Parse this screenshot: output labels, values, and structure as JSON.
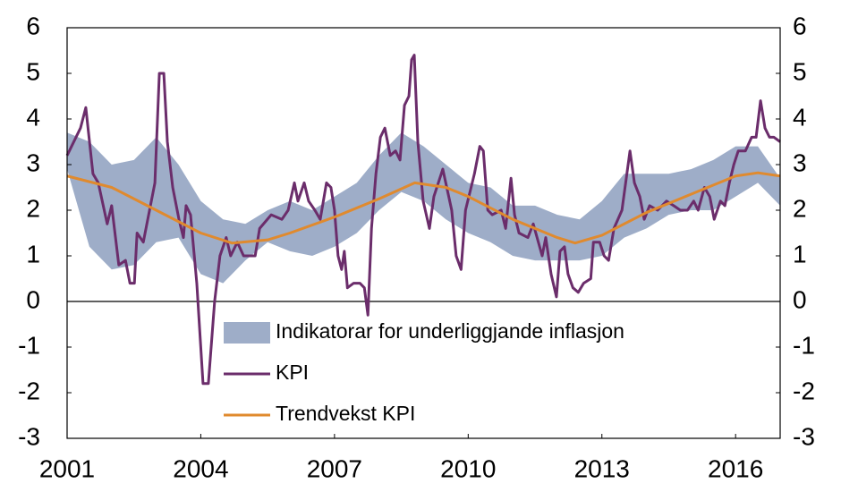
{
  "chart_data": {
    "type": "line",
    "xlim": [
      2001,
      2017
    ],
    "xticks": [
      2001,
      2004,
      2007,
      2010,
      2013,
      2016
    ],
    "ylim": [
      -3,
      6
    ],
    "yticks": [
      -3,
      -2,
      -1,
      0,
      1,
      2,
      3,
      4,
      5,
      6
    ],
    "y2lim": [
      -3,
      6
    ],
    "y2ticks": [
      -3,
      -2,
      -1,
      0,
      1,
      2,
      3,
      4,
      5,
      6
    ],
    "legend": "lower center",
    "series": [
      {
        "name": "Indikatorar for underliggjande inflasjon",
        "kind": "band",
        "color": "#9eadc8",
        "x": [
          2001,
          2001.5,
          2002,
          2002.5,
          2003,
          2003.5,
          2004,
          2004.5,
          2005,
          2005.5,
          2006,
          2006.5,
          2007,
          2007.5,
          2008,
          2008.5,
          2009,
          2009.5,
          2010,
          2010.5,
          2011,
          2011.5,
          2012,
          2012.5,
          2013,
          2013.5,
          2014,
          2014.5,
          2015,
          2015.5,
          2016,
          2016.5,
          2017
        ],
        "lower": [
          2.9,
          1.2,
          0.7,
          0.8,
          1.3,
          1.4,
          0.6,
          0.4,
          0.9,
          1.3,
          1.1,
          1.0,
          1.2,
          1.5,
          2.0,
          2.4,
          2.2,
          1.8,
          1.5,
          1.3,
          1.0,
          0.9,
          0.9,
          0.9,
          1.0,
          1.4,
          1.6,
          1.9,
          2.0,
          2.0,
          2.3,
          2.6,
          2.1
        ],
        "upper": [
          3.7,
          3.5,
          3.0,
          3.1,
          3.6,
          3.0,
          2.2,
          1.8,
          1.7,
          2.0,
          2.2,
          2.0,
          2.3,
          2.6,
          3.2,
          3.7,
          3.4,
          3.0,
          2.6,
          2.5,
          2.1,
          2.1,
          1.9,
          1.8,
          2.2,
          2.8,
          2.8,
          2.8,
          2.9,
          3.1,
          3.4,
          3.4,
          2.7
        ]
      },
      {
        "name": "KPI",
        "kind": "line",
        "color": "#6b2d6b",
        "x": [
          2001,
          2001.3,
          2001.42,
          2001.58,
          2001.7,
          2001.9,
          2002,
          2002.16,
          2002.31,
          2002.41,
          2002.51,
          2002.57,
          2002.71,
          2002.85,
          2002.97,
          2003.07,
          2003.17,
          2003.25,
          2003.37,
          2003.51,
          2003.61,
          2003.67,
          2003.77,
          2003.91,
          2004.05,
          2004.17,
          2004.31,
          2004.43,
          2004.57,
          2004.67,
          2004.82,
          2004.96,
          2005.22,
          2005.32,
          2005.58,
          2005.82,
          2005.96,
          2006.1,
          2006.18,
          2006.32,
          2006.42,
          2006.56,
          2006.68,
          2006.82,
          2006.92,
          2007,
          2007.08,
          2007.16,
          2007.22,
          2007.29,
          2007.43,
          2007.57,
          2007.67,
          2007.75,
          2007.83,
          2007.93,
          2008.03,
          2008.13,
          2008.25,
          2008.37,
          2008.47,
          2008.57,
          2008.67,
          2008.73,
          2008.79,
          2008.87,
          2008.99,
          2009.13,
          2009.23,
          2009.43,
          2009.63,
          2009.73,
          2009.84,
          2009.94,
          2010.14,
          2010.26,
          2010.34,
          2010.44,
          2010.54,
          2010.74,
          2010.84,
          2010.96,
          2011.04,
          2011.14,
          2011.34,
          2011.46,
          2011.66,
          2011.74,
          2011.86,
          2011.98,
          2012.06,
          2012.16,
          2012.24,
          2012.35,
          2012.47,
          2012.59,
          2012.75,
          2012.81,
          2012.95,
          2013.05,
          2013.15,
          2013.27,
          2013.45,
          2013.63,
          2013.73,
          2013.85,
          2013.95,
          2014.07,
          2014.25,
          2014.45,
          2014.61,
          2014.76,
          2014.92,
          2015.06,
          2015.16,
          2015.3,
          2015.42,
          2015.52,
          2015.66,
          2015.76,
          2015.86,
          2015.96,
          2016.06,
          2016.22,
          2016.36,
          2016.46,
          2016.56,
          2016.66,
          2016.76,
          2016.86,
          2017
        ],
        "values": [
          3.2,
          3.8,
          4.25,
          2.8,
          2.6,
          1.7,
          2.1,
          0.8,
          0.9,
          0.4,
          0.4,
          1.5,
          1.3,
          2.0,
          2.6,
          5.0,
          5.0,
          3.5,
          2.5,
          1.8,
          1.4,
          2.1,
          1.9,
          0.4,
          -1.8,
          -1.8,
          0,
          1.0,
          1.4,
          1.0,
          1.3,
          1.0,
          1.0,
          1.6,
          1.9,
          1.8,
          2.0,
          2.6,
          2.2,
          2.6,
          2.2,
          2.0,
          1.8,
          2.6,
          2.5,
          2.0,
          1.0,
          0.7,
          1.1,
          0.3,
          0.4,
          0.4,
          0.3,
          -0.3,
          1.6,
          2.8,
          3.6,
          3.8,
          3.2,
          3.3,
          3.1,
          4.3,
          4.5,
          5.3,
          5.4,
          3.5,
          2.2,
          1.6,
          2.3,
          2.9,
          2.0,
          1.0,
          0.7,
          2.0,
          2.8,
          3.4,
          3.3,
          2.0,
          1.9,
          2.0,
          1.6,
          2.7,
          1.9,
          1.5,
          1.4,
          1.7,
          1.0,
          1.4,
          0.6,
          0.1,
          1.1,
          1.2,
          0.6,
          0.3,
          0.2,
          0.4,
          0.5,
          1.3,
          1.3,
          1.0,
          0.9,
          1.6,
          2.0,
          3.3,
          2.6,
          2.3,
          1.8,
          2.1,
          2.0,
          2.2,
          2.1,
          2.0,
          2.0,
          2.2,
          2.0,
          2.5,
          2.3,
          1.8,
          2.2,
          2.1,
          2.6,
          3.0,
          3.3,
          3.3,
          3.6,
          3.6,
          4.4,
          3.8,
          3.6,
          3.6,
          3.5
        ]
      },
      {
        "name": "Trendvekst KPI",
        "kind": "line",
        "color": "#e08a2e",
        "x": [
          2001,
          2002,
          2003,
          2004,
          2004.7,
          2005.5,
          2006,
          2007,
          2008,
          2008.8,
          2009.5,
          2010,
          2011,
          2012,
          2012.4,
          2013,
          2014,
          2015,
          2016,
          2016.5,
          2017
        ],
        "values": [
          2.75,
          2.5,
          2.0,
          1.5,
          1.28,
          1.35,
          1.5,
          1.85,
          2.25,
          2.6,
          2.5,
          2.3,
          1.8,
          1.4,
          1.28,
          1.45,
          1.95,
          2.35,
          2.75,
          2.82,
          2.75
        ]
      }
    ]
  }
}
